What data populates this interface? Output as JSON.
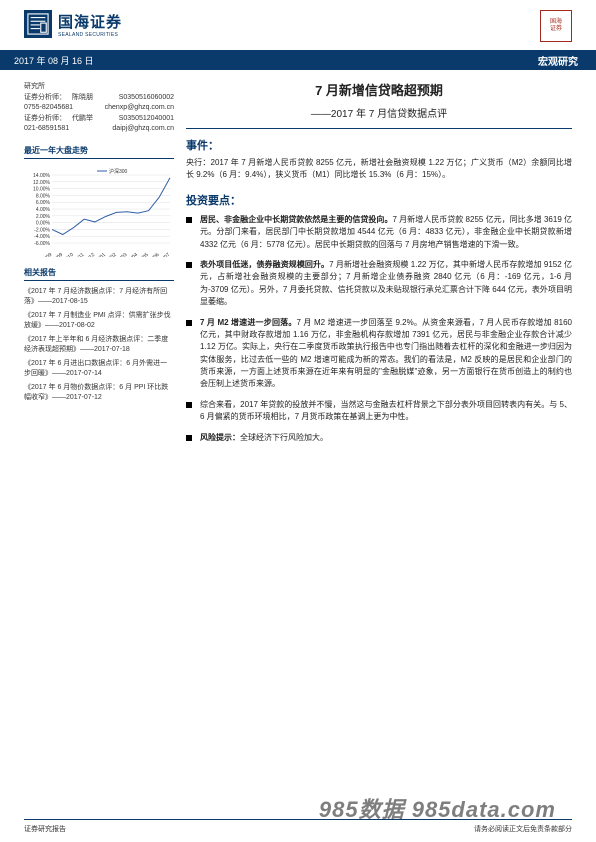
{
  "logo": {
    "cn": "国海证券",
    "en": "SEALAND SECURITIES",
    "seal_bg": "#0a3a6b"
  },
  "stamp_text": "国海\n证券",
  "blue_bar": {
    "date": "2017 年 08 月 16 日",
    "category": "宏观研究",
    "bg": "#0a3a6b"
  },
  "left": {
    "dept": "研究所",
    "analysts": [
      {
        "role": "证券分析师：",
        "name": "陈晓朋",
        "id": "S0350516060002",
        "phone": "0755-82045681",
        "email": "chenxp@ghzq.com.cn"
      },
      {
        "role": "证券分析师：",
        "name": "代鹏举",
        "id": "S0350512040001",
        "phone": "021-68591581",
        "email": "daipj@ghzq.com.cn"
      }
    ],
    "chart_title": "最近一年大盘走势",
    "chart": {
      "type": "line",
      "legend": "沪深300",
      "x_labels": [
        "16/09",
        "16/09",
        "16/10",
        "16/11",
        "16/12",
        "17/01",
        "17/02",
        "17/03",
        "17/04",
        "17/05",
        "17/06",
        "17/07"
      ],
      "y_ticks": [
        "-6.00%",
        "-4.00%",
        "-2.00%",
        "0.00%",
        "2.00%",
        "4.00%",
        "6.00%",
        "8.00%",
        "10.00%",
        "12.00%",
        "14.00%"
      ],
      "ylim": [
        -6,
        14
      ],
      "values": [
        -2.0,
        -3.5,
        -1.5,
        1.0,
        0.2,
        1.8,
        3.0,
        3.2,
        2.8,
        3.5,
        7.5,
        13.2
      ],
      "line_color": "#2f5fa8",
      "grid_color": "#d8d8d8",
      "axis_color": "#666666",
      "bg": "#ffffff",
      "tick_fontsize": 5
    },
    "reports_title": "相关报告",
    "reports": [
      "《2017 年 7 月经济数据点评：7 月经济有所回落》——2017-08-15",
      "《2017 年 7 月制造业 PMI 点评：供需扩张步伐放缓》——2017-08-02",
      "《2017 年上半年和 6 月经济数据点评：二季度经济表现超预期》——2017-07-18",
      "《2017 年 6 月进出口数据点评：6 月外需进一步回暖》——2017-07-14",
      "《2017 年 6 月物价数据点评：6 月 PPI 环比跌幅收窄》——2017-07-12"
    ]
  },
  "right": {
    "title": "7 月新增信贷略超预期",
    "subtitle": "——2017 年 7 月信贷数据点评",
    "event_h": "事件：",
    "event_body": "央行：2017 年 7 月新增人民币贷款 8255 亿元，新增社会融资规模 1.22 万亿；广义货币（M2）余额同比增长 9.2%（6 月：9.4%），狭义货币（M1）同比增长 15.3%（6 月：15%）。",
    "points_h": "投资要点：",
    "bullets": [
      {
        "lead": "居民、非金融企业中长期贷款依然是主要的信贷投向。",
        "body": "7 月新增人民币贷款 8255 亿元，同比多增 3619 亿元。分部门来看，居民部门中长期贷款增加 4544 亿元（6 月：4833 亿元），非金融企业中长期贷款新增 4332 亿元（6 月：5778 亿元）。居民中长期贷款的回落与 7 月房地产销售增速的下滑一致。"
      },
      {
        "lead": "表外项目低迷，债券融资规模回升。",
        "body": "7 月新增社会融资规模 1.22 万亿，其中新增人民币存款增加 9152 亿元，占新增社会融资规模的主要部分；7 月新增企业债券融资 2840 亿元（6 月：-169 亿元，1-6 月为-3709 亿元）。另外，7 月委托贷款、信托贷款以及未贴现银行承兑汇票合计下降 644 亿元，表外项目明显萎缩。"
      },
      {
        "lead": "7 月 M2 增速进一步回落。",
        "body": "7 月 M2 增速进一步回落至 9.2%。从资金来源看，7 月人民币存款增加 8160 亿元，其中财政存款增加 1.16 万亿，非金融机构存款增加 7391 亿元，居民与非金融企业存款合计减少 1.12 万亿。实际上，央行在二季度货币政策执行报告中也专门指出随着去杠杆的深化和金融进一步归因为实体服务，比过去低一些的 M2 增速可能成为新的常态。我们的看法是，M2 反映的是居民和企业部门的货币来源，一方面上述货币来源在近年来有明显的\"金融脱媒\"迹象，另一方面银行在货币创造上的制约也会压制上述货币来源。"
      },
      {
        "lead": "",
        "body": "综合来看，2017 年贷款的投放并不慢，当然这与金融去杠杆背景之下部分表外项目回转表内有关。与 5、6 月偏紧的货币环境相比，7 月货币政策在基调上更为中性。"
      },
      {
        "lead": "风险提示：",
        "body": "全球经济下行风险加大。"
      }
    ]
  },
  "footer": {
    "left": "证券研究报告",
    "right": "请务必阅读正文后免责条款部分"
  },
  "watermark": "985数据  985data.com",
  "colors": {
    "brand_blue": "#0a3a6b",
    "text": "#222222",
    "rule": "#0a3a6b"
  }
}
